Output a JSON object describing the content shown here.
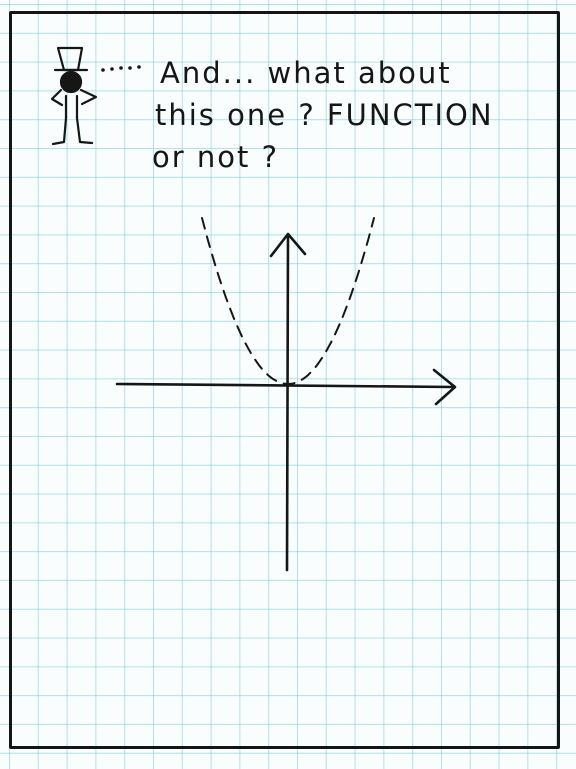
{
  "caption": {
    "line1": "And... what about",
    "line2": "this one ? FUNCTION",
    "line3": "or not ?"
  },
  "colors": {
    "paper": "#f9fdfd",
    "grid": "#78c8d7",
    "ink": "#161616"
  },
  "icons": {
    "character": "stick-figure-with-top-hat",
    "speech": "dotted-speech-line"
  },
  "chart_data": {
    "type": "line",
    "series": [
      {
        "style": "dashed",
        "function": "y = x^2",
        "x": [
          -1.0,
          -0.75,
          -0.5,
          -0.25,
          0,
          0.25,
          0.5,
          0.75,
          1.0
        ],
        "y": [
          1.0,
          0.5625,
          0.25,
          0.0625,
          0,
          0.0625,
          0.25,
          0.5625,
          1.0
        ]
      }
    ],
    "axes": {
      "x_arrow": true,
      "y_arrow": true,
      "ticks": false
    }
  }
}
